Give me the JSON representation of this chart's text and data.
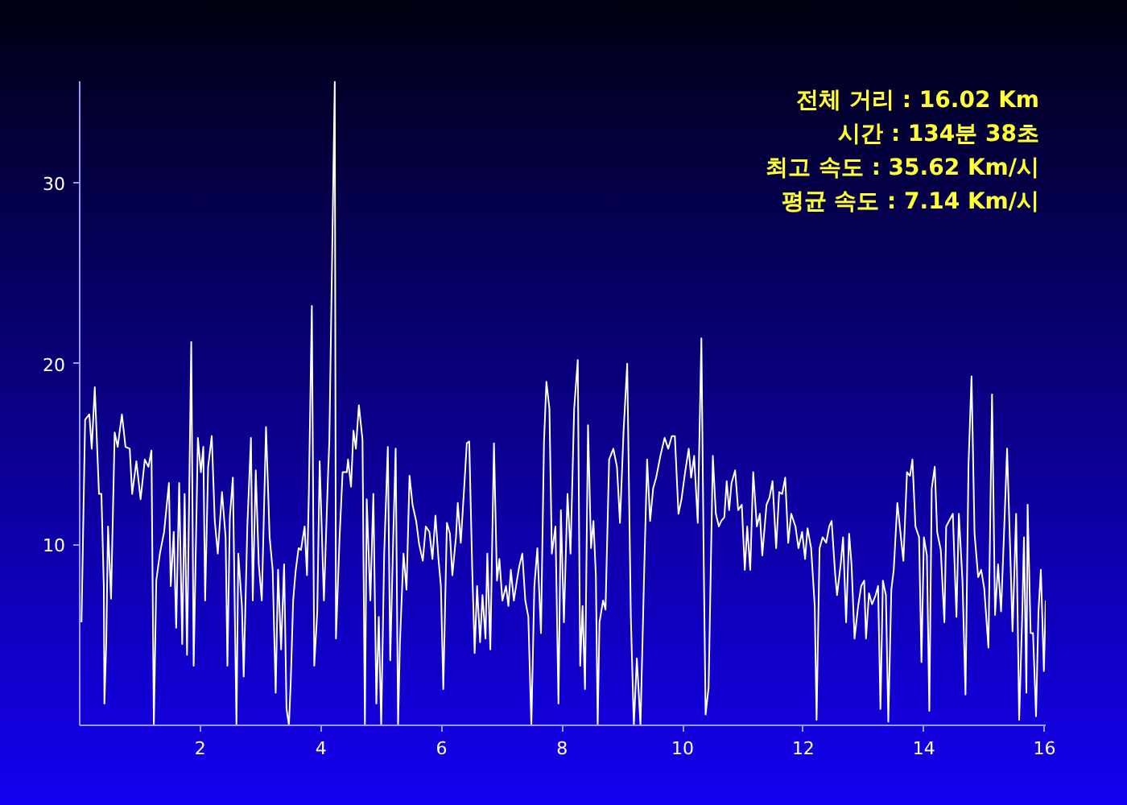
{
  "chart_data": {
    "type": "line",
    "title": null,
    "annotations": [
      "전체 거리 : 16.02 Km",
      "시간 : 134분 38초",
      "최고 속도 : 35.62 Km/시",
      "평균 속도 : 7.14 Km/시"
    ],
    "xlim": [
      0,
      16.02
    ],
    "xticks": [
      2,
      4,
      6,
      8,
      10,
      12,
      14,
      16
    ],
    "ylim": [
      0,
      35.62
    ],
    "yticks": [
      10,
      20,
      30
    ],
    "grid": false,
    "marker": "none",
    "line_style": "solid",
    "series": [
      {
        "color": "#ffffff",
        "x": [
          0.03,
          0.09,
          0.16,
          0.2,
          0.25,
          0.32,
          0.36,
          0.4,
          0.41,
          0.44,
          0.47,
          0.52,
          0.58,
          0.63,
          0.7,
          0.76,
          0.83,
          0.87,
          0.94,
          1.01,
          1.08,
          1.14,
          1.19,
          1.23,
          1.27,
          1.33,
          1.4,
          1.48,
          1.51,
          1.56,
          1.6,
          1.65,
          1.7,
          1.74,
          1.78,
          1.85,
          1.89,
          1.96,
          2.01,
          2.05,
          2.08,
          2.13,
          2.19,
          2.24,
          2.29,
          2.36,
          2.42,
          2.45,
          2.49,
          2.54,
          2.6,
          2.63,
          2.69,
          2.72,
          2.78,
          2.84,
          2.87,
          2.92,
          2.97,
          3.02,
          3.09,
          3.15,
          3.2,
          3.25,
          3.29,
          3.34,
          3.39,
          3.43,
          3.47,
          3.5,
          3.54,
          3.58,
          3.63,
          3.67,
          3.73,
          3.77,
          3.8,
          3.85,
          3.89,
          3.94,
          3.98,
          4.05,
          4.12,
          4.14,
          4.23,
          4.25,
          4.31,
          4.36,
          4.43,
          4.45,
          4.5,
          4.54,
          4.58,
          4.63,
          4.69,
          4.73,
          4.76,
          4.82,
          4.87,
          4.92,
          4.96,
          5.0,
          5.05,
          5.11,
          5.15,
          5.2,
          5.24,
          5.28,
          5.31,
          5.37,
          5.42,
          5.47,
          5.52,
          5.58,
          5.63,
          5.69,
          5.74,
          5.8,
          5.85,
          5.9,
          5.95,
          5.99,
          6.03,
          6.09,
          6.14,
          6.18,
          6.24,
          6.27,
          6.32,
          6.37,
          6.42,
          6.46,
          6.51,
          6.55,
          6.59,
          6.64,
          6.68,
          6.73,
          6.76,
          6.81,
          6.87,
          6.92,
          6.96,
          7.01,
          7.07,
          7.11,
          7.15,
          7.2,
          7.25,
          7.29,
          7.34,
          7.39,
          7.44,
          7.49,
          7.54,
          7.59,
          7.65,
          7.7,
          7.74,
          7.79,
          7.83,
          7.89,
          7.94,
          7.98,
          8.03,
          8.09,
          8.14,
          8.2,
          8.26,
          8.3,
          8.34,
          8.38,
          8.43,
          8.48,
          8.52,
          8.56,
          8.59,
          8.62,
          8.68,
          8.72,
          8.78,
          8.85,
          8.91,
          8.96,
          9.02,
          9.08,
          9.14,
          9.19,
          9.24,
          9.3,
          9.36,
          9.41,
          9.46,
          9.51,
          9.56,
          9.63,
          9.7,
          9.76,
          9.82,
          9.87,
          9.93,
          9.98,
          10.04,
          10.1,
          10.14,
          10.19,
          10.25,
          10.31,
          10.35,
          10.38,
          10.43,
          10.5,
          10.55,
          10.6,
          10.64,
          10.69,
          10.73,
          10.77,
          10.81,
          10.87,
          10.92,
          10.98,
          11.03,
          11.07,
          11.12,
          11.17,
          11.23,
          11.28,
          11.32,
          11.39,
          11.44,
          11.49,
          11.55,
          11.6,
          11.65,
          11.7,
          11.75,
          11.8,
          11.87,
          11.92,
          11.98,
          12.03,
          12.07,
          12.13,
          12.19,
          12.22,
          12.27,
          12.32,
          12.38,
          12.43,
          12.47,
          12.53,
          12.56,
          12.62,
          12.66,
          12.71,
          12.76,
          12.8,
          12.85,
          12.91,
          12.96,
          13.01,
          13.04,
          13.09,
          13.14,
          13.2,
          13.24,
          13.28,
          13.32,
          13.37,
          13.41,
          13.46,
          13.5,
          13.56,
          13.61,
          13.66,
          13.72,
          13.77,
          13.81,
          13.86,
          13.92,
          13.96,
          14.0,
          14.05,
          14.09,
          14.13,
          14.18,
          14.22,
          14.28,
          14.34,
          14.37,
          14.48,
          14.54,
          14.58,
          14.64,
          14.69,
          14.74,
          14.79,
          14.84,
          14.9,
          14.95,
          15.0,
          15.07,
          15.13,
          15.18,
          15.23,
          15.28,
          15.33,
          15.38,
          15.43,
          15.47,
          15.53,
          15.58,
          15.63,
          15.66,
          15.7,
          15.72,
          15.77,
          15.81,
          15.86,
          15.9,
          15.94,
          15.99,
          16.02
        ],
        "values": [
          5.7,
          16.9,
          17.2,
          15.3,
          18.7,
          12.8,
          12.8,
          7.7,
          1.2,
          4.5,
          11,
          7,
          16.2,
          15.4,
          17.2,
          15.4,
          15.3,
          12.8,
          14.6,
          12.5,
          14.7,
          14.3,
          15.2,
          0,
          8,
          9.5,
          10.7,
          13.4,
          7.7,
          10.7,
          5.4,
          13.4,
          4.5,
          12.8,
          3.9,
          21.2,
          3.3,
          15.9,
          14,
          15.4,
          6.9,
          14.3,
          16,
          11.3,
          9.5,
          12.9,
          10.4,
          3.3,
          11.5,
          13.7,
          0,
          9.5,
          6.6,
          2.7,
          11,
          15.9,
          6.9,
          14.1,
          8.9,
          6.9,
          16.5,
          10.4,
          8.6,
          1.8,
          8.6,
          4.2,
          8.9,
          0.9,
          0,
          2.4,
          6.9,
          8.5,
          9.8,
          9.7,
          11,
          8.3,
          12.8,
          23.2,
          3.3,
          6.3,
          14.6,
          6.9,
          14,
          15.7,
          35.6,
          4.8,
          10.4,
          14,
          14,
          14.7,
          13.2,
          16.3,
          15.3,
          17.7,
          15.8,
          0,
          12.5,
          6.9,
          12.8,
          1.2,
          6,
          0,
          9.5,
          15.4,
          3.6,
          10.4,
          15.3,
          0,
          4.5,
          9.5,
          7.5,
          13.8,
          12.2,
          11.3,
          10,
          9.1,
          11,
          10.7,
          9.2,
          11.6,
          9.2,
          7.7,
          2,
          11.2,
          10.6,
          8.3,
          10.4,
          12.3,
          10.1,
          12.8,
          15.6,
          15.7,
          8.6,
          4,
          7.7,
          4.6,
          7.2,
          4.8,
          9.5,
          4.2,
          15.6,
          8,
          9.2,
          6.9,
          7.7,
          6.6,
          8.6,
          6.9,
          8,
          8.8,
          9.5,
          6.9,
          6,
          0,
          7.7,
          9.8,
          5.1,
          15.7,
          19,
          17.5,
          9.5,
          11,
          1.2,
          11.9,
          5.7,
          12.8,
          9.5,
          17.5,
          20.2,
          3.3,
          6.6,
          2,
          16.6,
          9.8,
          11.3,
          8.3,
          0,
          5.7,
          6.9,
          6.4,
          14.7,
          15.3,
          14.3,
          11.2,
          16.3,
          20,
          6,
          0,
          3.7,
          0,
          8.3,
          14.7,
          11.3,
          13.1,
          13.7,
          14.9,
          15.9,
          15.3,
          16,
          16,
          11.7,
          12.5,
          14,
          15.3,
          13.7,
          14.9,
          11.2,
          21.4,
          8.8,
          0.6,
          2.1,
          14.9,
          11.7,
          11,
          11.3,
          11.5,
          13.5,
          11.9,
          13.4,
          14.1,
          11.9,
          12.2,
          8.6,
          11,
          8.6,
          14,
          11,
          11.7,
          9.4,
          12.2,
          12.6,
          13.5,
          9.8,
          12.9,
          12.8,
          13.7,
          10.1,
          11.7,
          11,
          9.8,
          10.7,
          9.2,
          10.9,
          9.8,
          6.6,
          0.3,
          9.8,
          10.4,
          10.1,
          11,
          11.3,
          8.3,
          7.2,
          8.9,
          10.4,
          5.7,
          10.6,
          8.9,
          4.8,
          6.6,
          7.7,
          8,
          4.8,
          7.3,
          6.7,
          7.2,
          7.7,
          0.9,
          8,
          7.2,
          0.2,
          7.5,
          8.6,
          12.3,
          10.7,
          9.1,
          14,
          13.8,
          14.7,
          11,
          10.4,
          3.5,
          10.4,
          9.4,
          0.8,
          13.1,
          14.3,
          10.7,
          9.7,
          5.7,
          11,
          11.7,
          6,
          11.7,
          8,
          1.7,
          14.4,
          19.3,
          10.6,
          8.2,
          8.6,
          7.6,
          4.3,
          18.3,
          6.1,
          8.9,
          6.3,
          10.7,
          15.3,
          9.8,
          5.2,
          11.7,
          0.3,
          6,
          10.4,
          1.8,
          12.2,
          5.1,
          5.1,
          0.5,
          6.3,
          8.6,
          3,
          6.9
        ]
      }
    ]
  }
}
